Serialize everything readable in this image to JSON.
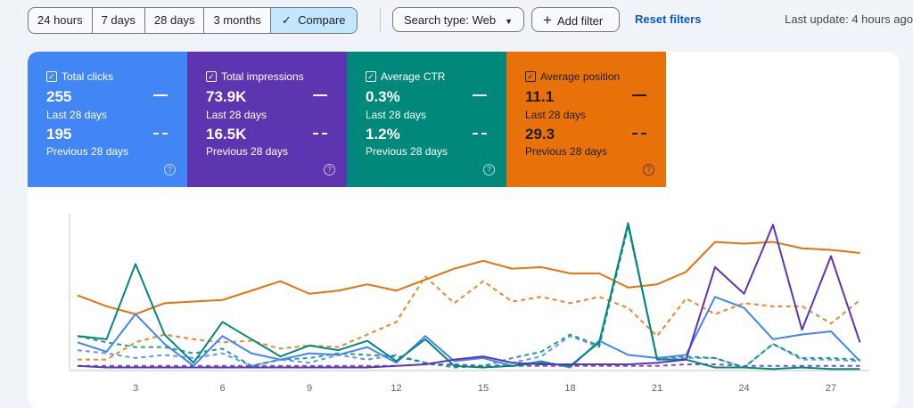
{
  "toolbar": {
    "ranges": [
      "24 hours",
      "7 days",
      "28 days",
      "3 months"
    ],
    "compare_label": "Compare",
    "search_type": "Search type: Web",
    "add_filter": "Add filter",
    "reset_filters": "Reset filters",
    "last_update": "Last update: 4 hours ago"
  },
  "cards": [
    {
      "label": "Total clicks",
      "current": "255",
      "current_period": "Last 28 days",
      "previous": "195",
      "previous_period": "Previous 28 days",
      "color": "#4285f4",
      "text_color": "#ffffff"
    },
    {
      "label": "Total impressions",
      "current": "73.9K",
      "current_period": "Last 28 days",
      "previous": "16.5K",
      "previous_period": "Previous 28 days",
      "color": "#5e35b1",
      "text_color": "#ffffff"
    },
    {
      "label": "Average CTR",
      "current": "0.3%",
      "current_period": "Last 28 days",
      "previous": "1.2%",
      "previous_period": "Previous 28 days",
      "color": "#00897b",
      "text_color": "#ffffff"
    },
    {
      "label": "Average position",
      "current": "11.1",
      "current_period": "Last 28 days",
      "previous": "29.3",
      "previous_period": "Previous 28 days",
      "color": "#e8710a",
      "text_color": "#1f1f1f"
    }
  ],
  "chart_data": {
    "type": "line",
    "x": [
      1,
      2,
      3,
      4,
      5,
      6,
      7,
      8,
      9,
      10,
      11,
      12,
      13,
      14,
      15,
      16,
      17,
      18,
      19,
      20,
      21,
      22,
      23,
      24,
      25,
      26,
      27,
      28
    ],
    "xticks": [
      "3",
      "6",
      "9",
      "12",
      "15",
      "18",
      "21",
      "24",
      "27"
    ],
    "ylim": [
      0,
      100
    ],
    "grid": false,
    "series": [
      {
        "metric": "Average position",
        "period": "Previous 28 days",
        "style": "dashed",
        "color": "#e8710a",
        "values": [
          7,
          7,
          18,
          23,
          20,
          18,
          19,
          14,
          16,
          15,
          23,
          31,
          60,
          43,
          57,
          44,
          47,
          43,
          47,
          40,
          22,
          46,
          36,
          43,
          41,
          41,
          30,
          45
        ]
      },
      {
        "metric": "Average position",
        "period": "Last 28 days",
        "style": "solid",
        "color": "#e8710a",
        "values": [
          48,
          41,
          36,
          43,
          44,
          45,
          51,
          57,
          49,
          51,
          55,
          51,
          58,
          65,
          70,
          65,
          66,
          62,
          62,
          53,
          55,
          63,
          82,
          81,
          82,
          78,
          77,
          75
        ]
      },
      {
        "metric": "Total impressions",
        "period": "Previous 28 days",
        "style": "dashed",
        "color": "#5e35b1",
        "values": [
          3,
          3,
          3,
          3,
          3,
          3,
          3,
          3,
          3,
          3,
          3,
          3,
          4,
          4,
          3,
          3,
          3,
          3,
          3,
          3,
          3,
          4,
          4,
          3,
          3,
          3,
          3,
          3
        ]
      },
      {
        "metric": "Total clicks",
        "period": "Previous 28 days",
        "style": "dashed",
        "color": "#4285f4",
        "values": [
          13,
          11,
          8,
          10,
          8,
          11,
          3,
          7,
          5,
          10,
          7,
          10,
          5,
          3,
          2,
          5,
          9,
          22,
          15,
          93,
          7,
          8,
          8,
          2,
          17,
          7,
          7,
          6
        ]
      },
      {
        "metric": "Average CTR",
        "period": "Previous 28 days",
        "style": "dashed",
        "color": "#00897b",
        "values": [
          22,
          18,
          15,
          15,
          11,
          14,
          3,
          7,
          8,
          11,
          10,
          9,
          5,
          2,
          3,
          8,
          12,
          23,
          16,
          92,
          8,
          9,
          8,
          2,
          17,
          8,
          8,
          7
        ]
      },
      {
        "metric": "Total clicks",
        "period": "Last 28 days",
        "style": "solid",
        "color": "#4285f4",
        "values": [
          18,
          12,
          36,
          17,
          3,
          22,
          11,
          7,
          11,
          10,
          15,
          5,
          22,
          6,
          8,
          3,
          6,
          2,
          19,
          10,
          8,
          10,
          47,
          40,
          20,
          23,
          25,
          6
        ]
      },
      {
        "metric": "Average CTR",
        "period": "Last 28 days",
        "style": "solid",
        "color": "#00897b",
        "values": [
          22,
          20,
          68,
          23,
          5,
          31,
          20,
          9,
          16,
          13,
          19,
          6,
          20,
          3,
          2,
          3,
          5,
          3,
          18,
          94,
          7,
          7,
          2,
          2,
          1,
          2,
          1,
          1
        ]
      },
      {
        "metric": "Total impressions",
        "period": "Last 28 days",
        "style": "solid",
        "color": "#5e35b1",
        "values": [
          3,
          2,
          2,
          2,
          2,
          2,
          2,
          2,
          2,
          2,
          2,
          3,
          4,
          7,
          9,
          5,
          4,
          4,
          4,
          4,
          5,
          7,
          66,
          49,
          93,
          26,
          73,
          18
        ]
      }
    ]
  }
}
